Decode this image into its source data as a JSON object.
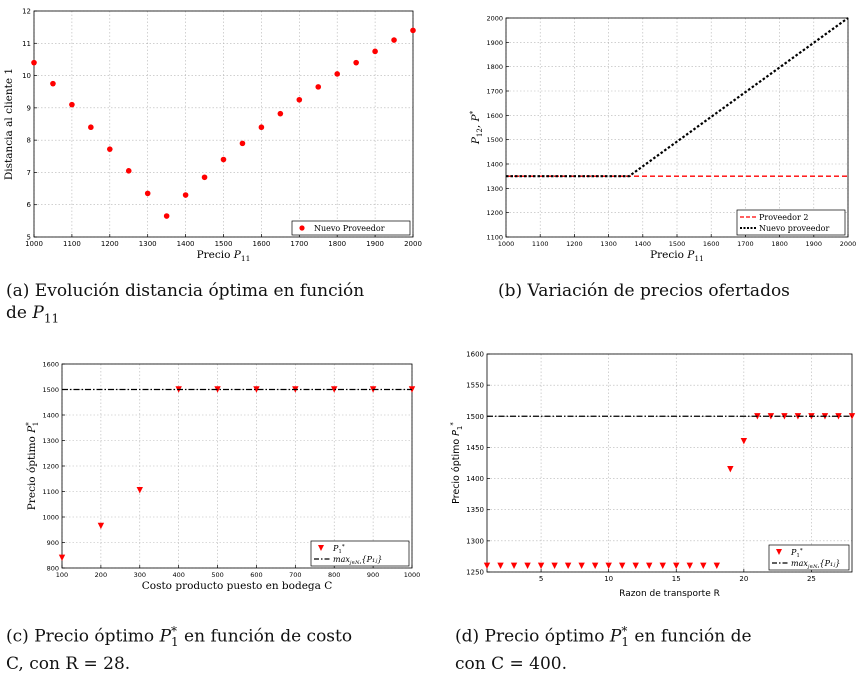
{
  "colors": {
    "marker": "#ff0000",
    "dashed_red": "#ff0000",
    "black": "#000000",
    "grid": "#b5b5b5"
  },
  "captions": {
    "a": "(a) Evolución distancia óptima en función de P11",
    "b": "(b) Variación de precios ofertados",
    "c": "(c) Precio óptimo P1* en función de costo C, con R = 28.",
    "d": "(d) Precio óptimo P1* en función de R, con C = 400."
  },
  "caption_parts": {
    "a1": "(a) Evolución distancia óptima en función",
    "a2": "de ",
    "a_sym": "P",
    "a_sub": "11",
    "b": "(b) Variación de precios ofertados",
    "c1": "(c) Precio óptimo ",
    "c_sym": "P",
    "c_sup": "*",
    "c_sub": "1",
    "c2": " en función de costo",
    "c3": "C, con R = 28.",
    "d1": "(d) Precio óptimo ",
    "d_sym": "P",
    "d_sup": "*",
    "d_sub": "1",
    "d2": " en función de",
    "d3": "con C = 400."
  },
  "chart_data": [
    {
      "id": "a",
      "type": "scatter",
      "xlabel": "Precio P11",
      "ylabel": "Distancia al cliente 1",
      "xlim": [
        1000,
        2000
      ],
      "ylim": [
        5,
        12
      ],
      "xticks": [
        1000,
        1100,
        1200,
        1300,
        1400,
        1500,
        1600,
        1700,
        1800,
        1900,
        2000
      ],
      "yticks": [
        5,
        6,
        7,
        8,
        9,
        10,
        11,
        12
      ],
      "grid": true,
      "legend_position": "bottom-right",
      "series": [
        {
          "name": "Nuevo Proveedor",
          "marker": "circle",
          "color": "#ff0000",
          "x": [
            1000,
            1050,
            1100,
            1150,
            1200,
            1250,
            1300,
            1350,
            1400,
            1450,
            1500,
            1550,
            1600,
            1650,
            1700,
            1750,
            1800,
            1850,
            1900,
            1950,
            2000
          ],
          "y": [
            10.4,
            9.75,
            9.1,
            8.4,
            7.72,
            7.05,
            6.35,
            5.65,
            6.3,
            6.85,
            7.4,
            7.9,
            8.4,
            8.82,
            9.25,
            9.65,
            10.05,
            10.4,
            10.75,
            11.1,
            11.4
          ]
        }
      ]
    },
    {
      "id": "b",
      "type": "line",
      "xlabel": "Precio P11",
      "ylabel": "P12, P1*",
      "xlim": [
        1000,
        2000
      ],
      "ylim": [
        1100,
        2000
      ],
      "xticks": [
        1000,
        1100,
        1200,
        1300,
        1400,
        1500,
        1600,
        1700,
        1800,
        1900,
        2000
      ],
      "yticks": [
        1100,
        1200,
        1300,
        1400,
        1500,
        1600,
        1700,
        1800,
        1900,
        2000
      ],
      "grid": true,
      "legend_position": "bottom-right",
      "series": [
        {
          "name": "Proveedor 2",
          "style": "dashed",
          "color": "#ff0000",
          "x": [
            1000,
            2000
          ],
          "y": [
            1350,
            1350
          ]
        },
        {
          "name": "Nuevo proveedor",
          "style": "dotted",
          "color": "#000000",
          "x": [
            1000,
            1360,
            2000
          ],
          "y": [
            1350,
            1350,
            2000
          ]
        }
      ]
    },
    {
      "id": "c",
      "type": "scatter",
      "xlabel": "Costo producto puesto en bodega C",
      "ylabel": "Precio óptimo P1*",
      "xlim": [
        100,
        1000
      ],
      "ylim": [
        800,
        1600
      ],
      "xticks": [
        100,
        200,
        300,
        400,
        500,
        600,
        700,
        800,
        900,
        1000
      ],
      "yticks": [
        800,
        900,
        1000,
        1100,
        1200,
        1300,
        1400,
        1500,
        1600
      ],
      "grid": true,
      "legend_position": "bottom-right",
      "series": [
        {
          "name": "P1*",
          "marker": "triangle-down",
          "color": "#ff0000",
          "x": [
            100,
            200,
            300,
            400,
            500,
            600,
            700,
            800,
            900,
            1000
          ],
          "y": [
            840,
            965,
            1105,
            1500,
            1500,
            1500,
            1500,
            1500,
            1500,
            1500
          ]
        },
        {
          "name": "max_{j∈N1}{P1j}",
          "style": "dashdot",
          "color": "#000000",
          "x": [
            100,
            1000
          ],
          "y": [
            1500,
            1500
          ]
        }
      ]
    },
    {
      "id": "d",
      "type": "scatter",
      "xlabel": "Razon de transporte R",
      "ylabel": "Precio óptimo P1*",
      "xlim": [
        1,
        28
      ],
      "ylim": [
        1250,
        1600
      ],
      "xticks": [
        5,
        10,
        15,
        20,
        25
      ],
      "yticks": [
        1250,
        1300,
        1350,
        1400,
        1450,
        1500,
        1550,
        1600
      ],
      "grid": true,
      "legend_position": "bottom-right",
      "series": [
        {
          "name": "P1*",
          "marker": "triangle-down",
          "color": "#ff0000",
          "x": [
            1,
            2,
            3,
            4,
            5,
            6,
            7,
            8,
            9,
            10,
            11,
            12,
            13,
            14,
            15,
            16,
            17,
            18,
            19,
            20,
            21,
            22,
            23,
            24,
            25,
            26,
            27,
            28
          ],
          "y": [
            1260,
            1260,
            1260,
            1260,
            1260,
            1260,
            1260,
            1260,
            1260,
            1260,
            1260,
            1260,
            1260,
            1260,
            1260,
            1260,
            1260,
            1260,
            1415,
            1460,
            1500,
            1500,
            1500,
            1500,
            1500,
            1500,
            1500,
            1500
          ]
        },
        {
          "name": "max_{j∈N1}{P1j}",
          "style": "dashdot",
          "color": "#000000",
          "x": [
            1,
            28
          ],
          "y": [
            1500,
            1500
          ]
        }
      ]
    }
  ]
}
